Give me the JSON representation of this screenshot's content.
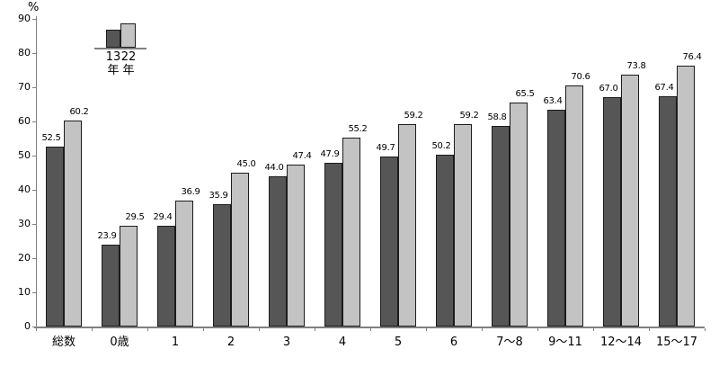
{
  "chart_data": {
    "type": "bar",
    "title": "",
    "ylabel": "%",
    "xlabel": "",
    "ylim": [
      0,
      90
    ],
    "yticks": [
      0,
      10,
      20,
      30,
      40,
      50,
      60,
      70,
      80,
      90
    ],
    "grid": false,
    "legend_position": "top-left",
    "categories": [
      "総数",
      "0歳",
      "1",
      "2",
      "3",
      "4",
      "5",
      "6",
      "7〜8",
      "9〜11",
      "12〜14",
      "15〜17"
    ],
    "series": [
      {
        "name": "13年",
        "color": "#565656",
        "border_color": "#1c1c1c",
        "values": [
          52.5,
          23.9,
          29.4,
          35.9,
          44.0,
          47.9,
          49.7,
          50.2,
          58.8,
          63.4,
          67.0,
          67.4
        ]
      },
      {
        "name": "22年",
        "color": "#c3c3c3",
        "border_color": "#1c1c1c",
        "values": [
          60.2,
          29.5,
          36.9,
          45.0,
          47.4,
          55.2,
          59.2,
          59.2,
          65.5,
          70.6,
          73.8,
          76.4
        ]
      }
    ],
    "value_label_decimals": 1,
    "legend": {
      "items": [
        {
          "line1": "13",
          "line2": "年",
          "series": "13年"
        },
        {
          "line1": "22",
          "line2": "年",
          "series": "22年"
        }
      ]
    },
    "axis_color": "#808080",
    "text_color": "#000000"
  }
}
